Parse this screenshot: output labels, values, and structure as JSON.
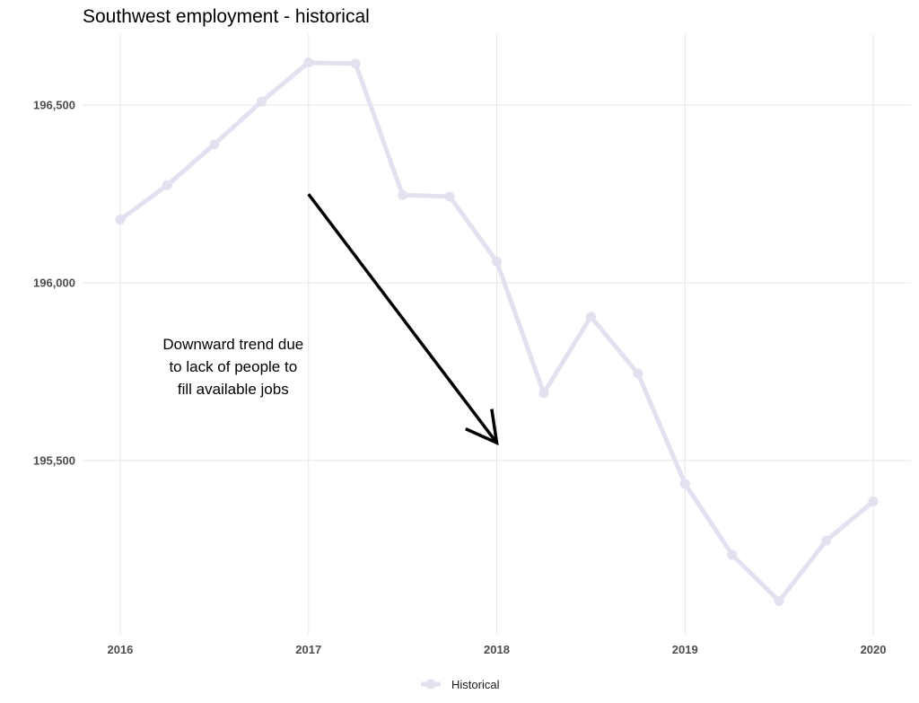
{
  "chart_data": {
    "type": "line",
    "title": "Southwest employment - historical",
    "xlabel": "",
    "ylabel": "",
    "x_ticks": [
      2016,
      2017,
      2018,
      2019,
      2020
    ],
    "y_ticks": [
      195500,
      196000,
      196500
    ],
    "y_tick_labels": [
      "195,500",
      "196,000",
      "196,500"
    ],
    "xlim": [
      2015.8,
      2020.2
    ],
    "ylim": [
      195010,
      196700
    ],
    "grid": true,
    "series": [
      {
        "name": "Historical",
        "color": "#e4e0f0",
        "x": [
          2016,
          2016.25,
          2016.5,
          2016.75,
          2017,
          2017.25,
          2017.5,
          2017.75,
          2018,
          2018.25,
          2018.5,
          2018.75,
          2019,
          2019.25,
          2019.5,
          2019.75,
          2020
        ],
        "y": [
          196178,
          196275,
          196390,
          196510,
          196620,
          196617,
          196247,
          196243,
          196060,
          195690,
          195905,
          195745,
          195435,
          195235,
          195105,
          195275,
          195385
        ]
      }
    ],
    "annotation": {
      "lines": [
        "Downward trend due",
        "to lack of people to",
        "fill available jobs"
      ],
      "anchor_x": 2016.6,
      "anchor_y": 195750,
      "arrow_from": [
        2017,
        196250
      ],
      "arrow_to": [
        2018,
        195550
      ]
    },
    "legend": {
      "position": "bottom",
      "entries": [
        "Historical"
      ]
    }
  }
}
